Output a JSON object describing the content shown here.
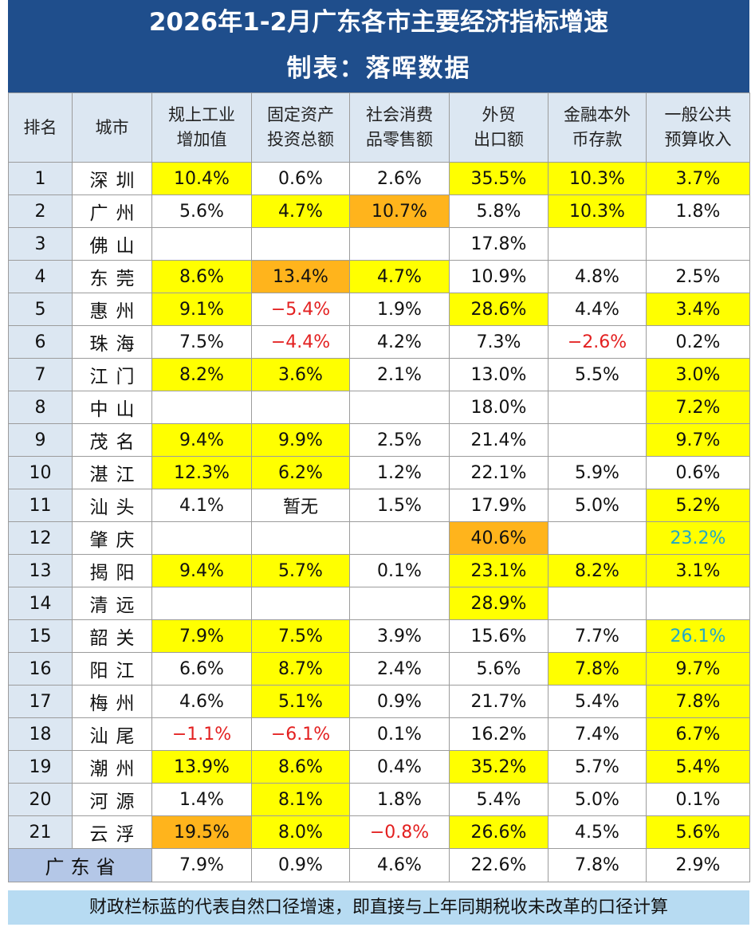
{
  "title": "2026年1-2月广东各市主要经济指标增速",
  "subtitle": "制表：落晖数据",
  "footnote": "财政栏标蓝的代表自然口径增速，即直接与上年同期税收未改革的口径计算",
  "chart_data": {
    "type": "table",
    "columns": [
      {
        "key": "rank",
        "line1": "排名",
        "line2": ""
      },
      {
        "key": "city",
        "line1": "城市",
        "line2": ""
      },
      {
        "key": "ind",
        "line1": "规上工业",
        "line2": "增加值"
      },
      {
        "key": "fai",
        "line1": "固定资产",
        "line2": "投资总额"
      },
      {
        "key": "retail",
        "line1": "社会消费",
        "line2": "品零售额"
      },
      {
        "key": "export",
        "line1": "外贸",
        "line2": "出口额"
      },
      {
        "key": "deposit",
        "line1": "金融本外",
        "line2": "币存款"
      },
      {
        "key": "budget",
        "line1": "一般公共",
        "line2": "预算收入"
      }
    ],
    "highlight_colors": {
      "yellow": "#ffff00",
      "orange": "#ffb41c",
      "negative_text": "#e32020",
      "natural_caliber_text": "#20a8c8"
    },
    "rows": [
      {
        "rank": "1",
        "city": "深圳",
        "values": [
          "10.4%",
          "0.6%",
          "2.6%",
          "35.5%",
          "10.3%",
          "3.7%"
        ],
        "styles": [
          "y",
          "",
          "",
          "y",
          "y",
          "y"
        ]
      },
      {
        "rank": "2",
        "city": "广州",
        "values": [
          "5.6%",
          "4.7%",
          "10.7%",
          "5.8%",
          "10.3%",
          "1.8%"
        ],
        "styles": [
          "",
          "y",
          "o",
          "",
          "y",
          ""
        ]
      },
      {
        "rank": "3",
        "city": "佛山",
        "values": [
          "",
          "",
          "",
          "17.8%",
          "",
          ""
        ],
        "styles": [
          "",
          "",
          "",
          "",
          "",
          ""
        ]
      },
      {
        "rank": "4",
        "city": "东莞",
        "values": [
          "8.6%",
          "13.4%",
          "4.7%",
          "10.9%",
          "4.8%",
          "2.5%"
        ],
        "styles": [
          "y",
          "o",
          "y",
          "",
          "",
          ""
        ]
      },
      {
        "rank": "5",
        "city": "惠州",
        "values": [
          "9.1%",
          "−5.4%",
          "1.9%",
          "28.6%",
          "4.4%",
          "3.4%"
        ],
        "styles": [
          "y",
          "neg",
          "",
          "y",
          "",
          "y"
        ]
      },
      {
        "rank": "6",
        "city": "珠海",
        "values": [
          "7.5%",
          "−4.4%",
          "4.2%",
          "7.3%",
          "−2.6%",
          "0.2%"
        ],
        "styles": [
          "",
          "neg",
          "",
          "",
          "neg",
          ""
        ]
      },
      {
        "rank": "7",
        "city": "江门",
        "values": [
          "8.2%",
          "3.6%",
          "2.1%",
          "13.0%",
          "5.5%",
          "3.0%"
        ],
        "styles": [
          "y",
          "y",
          "",
          "",
          "",
          "y"
        ]
      },
      {
        "rank": "8",
        "city": "中山",
        "values": [
          "",
          "",
          "",
          "18.0%",
          "",
          "7.2%"
        ],
        "styles": [
          "",
          "",
          "",
          "",
          "",
          "y"
        ]
      },
      {
        "rank": "9",
        "city": "茂名",
        "values": [
          "9.4%",
          "9.9%",
          "2.5%",
          "21.4%",
          "",
          "9.7%"
        ],
        "styles": [
          "y",
          "y",
          "",
          "",
          "",
          "y"
        ]
      },
      {
        "rank": "10",
        "city": "湛江",
        "values": [
          "12.3%",
          "6.2%",
          "1.2%",
          "22.1%",
          "5.9%",
          "0.6%"
        ],
        "styles": [
          "y",
          "y",
          "",
          "",
          "",
          ""
        ]
      },
      {
        "rank": "11",
        "city": "汕头",
        "values": [
          "4.1%",
          "暂无",
          "1.5%",
          "17.9%",
          "5.0%",
          "5.2%"
        ],
        "styles": [
          "",
          "",
          "",
          "",
          "",
          "y"
        ]
      },
      {
        "rank": "12",
        "city": "肇庆",
        "values": [
          "",
          "",
          "",
          "40.6%",
          "",
          "23.2%"
        ],
        "styles": [
          "",
          "",
          "",
          "o",
          "",
          "y cyan"
        ]
      },
      {
        "rank": "13",
        "city": "揭阳",
        "values": [
          "9.4%",
          "5.7%",
          "0.1%",
          "23.1%",
          "8.2%",
          "3.1%"
        ],
        "styles": [
          "y",
          "y",
          "",
          "y",
          "y",
          "y"
        ]
      },
      {
        "rank": "14",
        "city": "清远",
        "values": [
          "",
          "",
          "",
          "28.9%",
          "",
          ""
        ],
        "styles": [
          "",
          "",
          "",
          "y",
          "",
          ""
        ]
      },
      {
        "rank": "15",
        "city": "韶关",
        "values": [
          "7.9%",
          "7.5%",
          "3.9%",
          "15.6%",
          "7.7%",
          "26.1%"
        ],
        "styles": [
          "y",
          "y",
          "",
          "",
          "",
          "y cyan"
        ]
      },
      {
        "rank": "16",
        "city": "阳江",
        "values": [
          "6.6%",
          "8.7%",
          "2.4%",
          "5.6%",
          "7.8%",
          "9.7%"
        ],
        "styles": [
          "",
          "y",
          "",
          "",
          "y",
          "y"
        ]
      },
      {
        "rank": "17",
        "city": "梅州",
        "values": [
          "4.6%",
          "5.1%",
          "0.9%",
          "21.7%",
          "5.4%",
          "7.8%"
        ],
        "styles": [
          "",
          "y",
          "",
          "",
          "",
          "y"
        ]
      },
      {
        "rank": "18",
        "city": "汕尾",
        "values": [
          "−1.1%",
          "−6.1%",
          "0.1%",
          "16.2%",
          "7.4%",
          "6.7%"
        ],
        "styles": [
          "neg",
          "neg",
          "",
          "",
          "",
          "y"
        ]
      },
      {
        "rank": "19",
        "city": "潮州",
        "values": [
          "13.9%",
          "8.6%",
          "0.4%",
          "35.2%",
          "5.7%",
          "5.4%"
        ],
        "styles": [
          "y",
          "y",
          "",
          "y",
          "",
          "y"
        ]
      },
      {
        "rank": "20",
        "city": "河源",
        "values": [
          "1.4%",
          "8.1%",
          "1.8%",
          "5.4%",
          "5.0%",
          "0.1%"
        ],
        "styles": [
          "",
          "y",
          "",
          "",
          "",
          ""
        ]
      },
      {
        "rank": "21",
        "city": "云浮",
        "values": [
          "19.5%",
          "8.0%",
          "−0.8%",
          "26.6%",
          "4.5%",
          "5.6%"
        ],
        "styles": [
          "o",
          "y",
          "neg",
          "y",
          "",
          "y"
        ]
      }
    ],
    "province": {
      "name": "广东省",
      "values": [
        "7.9%",
        "0.9%",
        "4.6%",
        "22.6%",
        "7.8%",
        "2.9%"
      ]
    }
  }
}
